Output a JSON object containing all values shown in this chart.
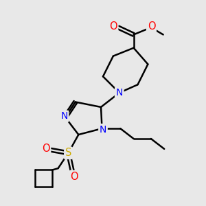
{
  "background_color": "#e8e8e8",
  "bond_color": "#000000",
  "bond_width": 1.8,
  "atom_colors": {
    "N": "#0000ff",
    "O": "#ff0000",
    "S": "#ccaa00"
  },
  "fig_width": 3.0,
  "fig_height": 3.0,
  "dpi": 100
}
